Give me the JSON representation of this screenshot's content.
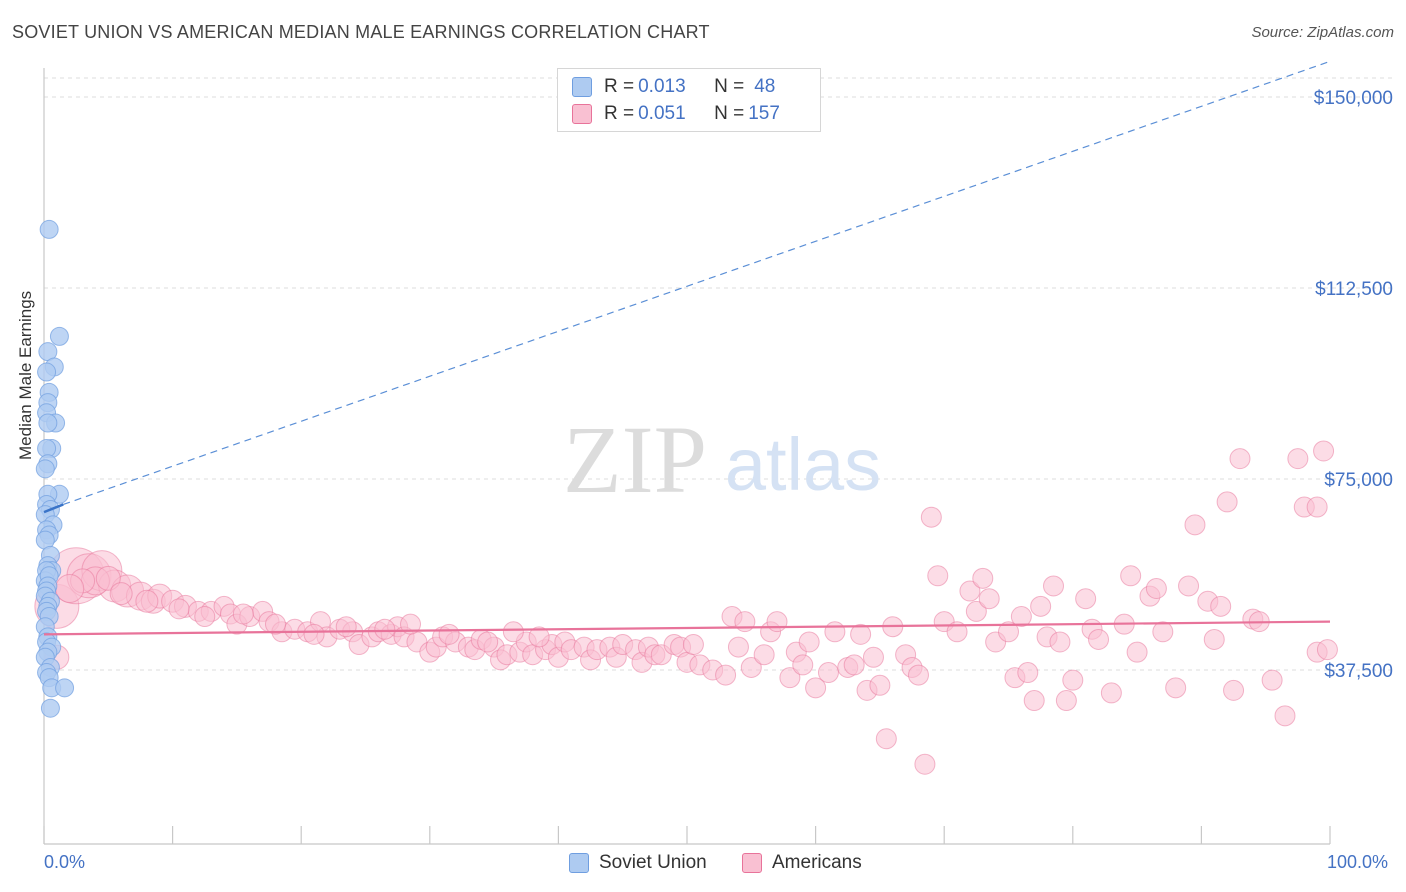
{
  "header": {
    "title": "SOVIET UNION VS AMERICAN MEDIAN MALE EARNINGS CORRELATION CHART",
    "source": "Source: ZipAtlas.com"
  },
  "watermark": {
    "zip": "ZIP",
    "atlas": "atlas"
  },
  "legend_top": {
    "rows": [
      {
        "r_label": "R = ",
        "r_value": "0.013",
        "n_label": "N = ",
        "n_value": "48",
        "color": "#aecbf1"
      },
      {
        "r_label": "R = ",
        "r_value": "0.051",
        "n_label": "N = ",
        "n_value": "157",
        "color": "#f9c0d2"
      }
    ]
  },
  "legend_bottom": [
    {
      "label": "Soviet Union",
      "color": "#aecbf1"
    },
    {
      "label": "Americans",
      "color": "#f9c0d2"
    }
  ],
  "chart_data": {
    "type": "scatter",
    "title": "SOVIET UNION VS AMERICAN MEDIAN MALE EARNINGS CORRELATION CHART",
    "xlabel": "",
    "ylabel": "Median Male Earnings",
    "xlim": [
      0,
      100
    ],
    "ylim": [
      0,
      155000
    ],
    "x_tick_labels": [
      "0.0%",
      "100.0%"
    ],
    "y_ticks": [
      37500,
      75000,
      112500,
      150000
    ],
    "y_tick_labels": [
      "$37,500",
      "$75,000",
      "$112,500",
      "$150,000"
    ],
    "colors": {
      "soviet": "#6f9ee0",
      "soviet_fill": "#aecbf1",
      "americans": "#e8739a",
      "americans_fill": "#f9c0d2",
      "axis_text": "#4472c4"
    },
    "series": [
      {
        "name": "Soviet Union",
        "r": 0.013,
        "n": 48,
        "trend_solid": {
          "x": [
            0,
            1.5
          ],
          "y": [
            68500,
            70000
          ]
        },
        "trend_dashed": {
          "x": [
            1.5,
            100
          ],
          "y": [
            70000,
            157000
          ]
        },
        "points": [
          [
            0.4,
            124000
          ],
          [
            1.2,
            103000
          ],
          [
            0.3,
            100000
          ],
          [
            0.8,
            97000
          ],
          [
            0.2,
            96000
          ],
          [
            0.4,
            92000
          ],
          [
            0.3,
            90000
          ],
          [
            0.2,
            88000
          ],
          [
            0.9,
            86000
          ],
          [
            0.3,
            86000
          ],
          [
            0.6,
            81000
          ],
          [
            0.2,
            81000
          ],
          [
            0.3,
            78000
          ],
          [
            0.1,
            77000
          ],
          [
            1.2,
            72000
          ],
          [
            0.3,
            72000
          ],
          [
            0.2,
            70000
          ],
          [
            0.5,
            69000
          ],
          [
            0.1,
            68000
          ],
          [
            0.7,
            66000
          ],
          [
            0.2,
            65000
          ],
          [
            0.4,
            64000
          ],
          [
            0.1,
            63000
          ],
          [
            0.5,
            60000
          ],
          [
            0.3,
            58000
          ],
          [
            0.6,
            57000
          ],
          [
            0.2,
            57000
          ],
          [
            0.1,
            55000
          ],
          [
            0.4,
            56000
          ],
          [
            0.3,
            54000
          ],
          [
            0.2,
            53000
          ],
          [
            0.1,
            52000
          ],
          [
            0.5,
            51000
          ],
          [
            0.3,
            50000
          ],
          [
            0.2,
            49000
          ],
          [
            0.4,
            48000
          ],
          [
            0.1,
            46000
          ],
          [
            0.3,
            44000
          ],
          [
            0.2,
            43000
          ],
          [
            0.6,
            42000
          ],
          [
            0.3,
            41000
          ],
          [
            0.1,
            40000
          ],
          [
            0.5,
            38000
          ],
          [
            0.2,
            37000
          ],
          [
            0.4,
            36000
          ],
          [
            0.6,
            34000
          ],
          [
            1.6,
            34000
          ],
          [
            0.5,
            30000
          ]
        ]
      },
      {
        "name": "Americans",
        "r": 0.051,
        "n": 157,
        "trend": {
          "x": [
            0,
            100
          ],
          "y": [
            44500,
            47000
          ]
        },
        "points": [
          [
            1.0,
            50000,
            22
          ],
          [
            2.5,
            56000,
            28
          ],
          [
            3.5,
            56000,
            22
          ],
          [
            4.5,
            57000,
            20
          ],
          [
            5.5,
            54000,
            16
          ],
          [
            4.0,
            55000,
            14
          ],
          [
            1.0,
            40000,
            12
          ],
          [
            6.5,
            53000,
            16
          ],
          [
            7.5,
            52000,
            14
          ],
          [
            8.5,
            51000,
            12
          ],
          [
            9.0,
            52000,
            12
          ],
          [
            10.0,
            51000,
            11
          ],
          [
            11.0,
            50000,
            11
          ],
          [
            12.0,
            49000,
            10
          ],
          [
            13.0,
            49000,
            10
          ],
          [
            14.0,
            50000,
            10
          ],
          [
            14.5,
            48500,
            10
          ],
          [
            15.0,
            46500,
            10
          ],
          [
            16.0,
            48000,
            10
          ],
          [
            17.0,
            49000,
            10
          ],
          [
            17.5,
            47000,
            10
          ],
          [
            18.5,
            45000,
            10
          ],
          [
            19.5,
            45500,
            10
          ],
          [
            20.5,
            45000,
            10
          ],
          [
            21.5,
            47000,
            10
          ],
          [
            22.0,
            44000,
            10
          ],
          [
            23.0,
            45500,
            10
          ],
          [
            24.0,
            45000,
            10
          ],
          [
            24.5,
            42500,
            10
          ],
          [
            25.5,
            44000,
            10
          ],
          [
            26.0,
            45000,
            10
          ],
          [
            27.0,
            44500,
            10
          ],
          [
            27.5,
            46000,
            10
          ],
          [
            28.0,
            44000,
            10
          ],
          [
            29.0,
            43000,
            10
          ],
          [
            30.0,
            41000,
            10
          ],
          [
            30.5,
            42000,
            10
          ],
          [
            31.0,
            44000,
            10
          ],
          [
            32.0,
            43000,
            10
          ],
          [
            33.0,
            42000,
            10
          ],
          [
            33.5,
            41500,
            10
          ],
          [
            34.0,
            43500,
            10
          ],
          [
            35.0,
            42000,
            10
          ],
          [
            35.5,
            39500,
            10
          ],
          [
            36.0,
            40500,
            10
          ],
          [
            37.0,
            41000,
            10
          ],
          [
            37.5,
            43000,
            10
          ],
          [
            38.0,
            40500,
            10
          ],
          [
            39.0,
            41500,
            10
          ],
          [
            39.5,
            42500,
            10
          ],
          [
            40.0,
            40000,
            10
          ],
          [
            40.5,
            43000,
            10
          ],
          [
            41.0,
            41500,
            10
          ],
          [
            42.0,
            42000,
            10
          ],
          [
            42.5,
            39500,
            10
          ],
          [
            43.0,
            41500,
            10
          ],
          [
            44.0,
            42000,
            10
          ],
          [
            44.5,
            40000,
            10
          ],
          [
            45.0,
            42500,
            10
          ],
          [
            46.0,
            41500,
            10
          ],
          [
            46.5,
            39000,
            10
          ],
          [
            47.0,
            42000,
            10
          ],
          [
            47.5,
            40500,
            10
          ],
          [
            48.0,
            40500,
            10
          ],
          [
            49.0,
            42500,
            10
          ],
          [
            49.5,
            42000,
            10
          ],
          [
            50.0,
            39000,
            10
          ],
          [
            50.5,
            42500,
            10
          ],
          [
            51.0,
            38500,
            10
          ],
          [
            52.0,
            37500,
            10
          ],
          [
            53.0,
            36500,
            10
          ],
          [
            53.5,
            48000,
            10
          ],
          [
            54.0,
            42000,
            10
          ],
          [
            54.5,
            47000,
            10
          ],
          [
            55.0,
            38000,
            10
          ],
          [
            56.0,
            40500,
            10
          ],
          [
            56.5,
            45000,
            10
          ],
          [
            57.0,
            47000,
            10
          ],
          [
            58.0,
            36000,
            10
          ],
          [
            58.5,
            41000,
            10
          ],
          [
            59.0,
            38500,
            10
          ],
          [
            59.5,
            43000,
            10
          ],
          [
            60.0,
            34000,
            10
          ],
          [
            61.0,
            37000,
            10
          ],
          [
            61.5,
            45000,
            10
          ],
          [
            62.5,
            38000,
            10
          ],
          [
            63.0,
            38500,
            10
          ],
          [
            63.5,
            44500,
            10
          ],
          [
            64.0,
            33500,
            10
          ],
          [
            64.5,
            40000,
            10
          ],
          [
            65.0,
            34500,
            10
          ],
          [
            65.5,
            24000,
            10
          ],
          [
            66.0,
            46000,
            10
          ],
          [
            67.0,
            40500,
            10
          ],
          [
            67.5,
            38000,
            10
          ],
          [
            68.0,
            36500,
            10
          ],
          [
            68.5,
            19000,
            10
          ],
          [
            69.0,
            67500,
            10
          ],
          [
            69.5,
            56000,
            10
          ],
          [
            70.0,
            47000,
            10
          ],
          [
            71.0,
            45000,
            10
          ],
          [
            72.0,
            53000,
            10
          ],
          [
            72.5,
            49000,
            10
          ],
          [
            73.0,
            55500,
            10
          ],
          [
            73.5,
            51500,
            10
          ],
          [
            74.0,
            43000,
            10
          ],
          [
            75.0,
            45000,
            10
          ],
          [
            75.5,
            36000,
            10
          ],
          [
            76.0,
            48000,
            10
          ],
          [
            76.5,
            37000,
            10
          ],
          [
            77.0,
            31500,
            10
          ],
          [
            77.5,
            50000,
            10
          ],
          [
            78.0,
            44000,
            10
          ],
          [
            78.5,
            54000,
            10
          ],
          [
            79.0,
            43000,
            10
          ],
          [
            79.5,
            31500,
            10
          ],
          [
            80.0,
            35500,
            10
          ],
          [
            81.0,
            51500,
            10
          ],
          [
            81.5,
            45500,
            10
          ],
          [
            82.0,
            43500,
            10
          ],
          [
            83.0,
            33000,
            10
          ],
          [
            84.0,
            46500,
            10
          ],
          [
            84.5,
            56000,
            10
          ],
          [
            85.0,
            41000,
            10
          ],
          [
            86.0,
            52000,
            10
          ],
          [
            86.5,
            53500,
            10
          ],
          [
            87.0,
            45000,
            10
          ],
          [
            88.0,
            34000,
            10
          ],
          [
            89.0,
            54000,
            10
          ],
          [
            89.5,
            66000,
            10
          ],
          [
            90.5,
            51000,
            10
          ],
          [
            91.0,
            43500,
            10
          ],
          [
            91.5,
            50000,
            10
          ],
          [
            92.0,
            70500,
            10
          ],
          [
            92.5,
            33500,
            10
          ],
          [
            93.0,
            79000,
            10
          ],
          [
            94.0,
            47500,
            10
          ],
          [
            94.5,
            47000,
            10
          ],
          [
            95.5,
            35500,
            10
          ],
          [
            96.5,
            28500,
            10
          ],
          [
            97.5,
            79000,
            10
          ],
          [
            98.0,
            69500,
            10
          ],
          [
            99.0,
            41000,
            10
          ],
          [
            99.5,
            80500,
            10
          ],
          [
            99.0,
            69500,
            10
          ],
          [
            99.8,
            41500,
            10
          ],
          [
            3.0,
            55000,
            12
          ],
          [
            5.0,
            55500,
            12
          ],
          [
            6.0,
            52500,
            11
          ],
          [
            2.0,
            53500,
            14
          ],
          [
            8.0,
            51000,
            11
          ],
          [
            10.5,
            49500,
            10
          ],
          [
            12.5,
            48000,
            10
          ],
          [
            15.5,
            48500,
            10
          ],
          [
            18.0,
            46500,
            10
          ],
          [
            21.0,
            44500,
            10
          ],
          [
            23.5,
            46000,
            10
          ],
          [
            26.5,
            45500,
            10
          ],
          [
            28.5,
            46500,
            10
          ],
          [
            31.5,
            44500,
            10
          ],
          [
            34.5,
            43000,
            10
          ],
          [
            36.5,
            45000,
            10
          ],
          [
            38.5,
            44000,
            10
          ]
        ]
      }
    ]
  }
}
